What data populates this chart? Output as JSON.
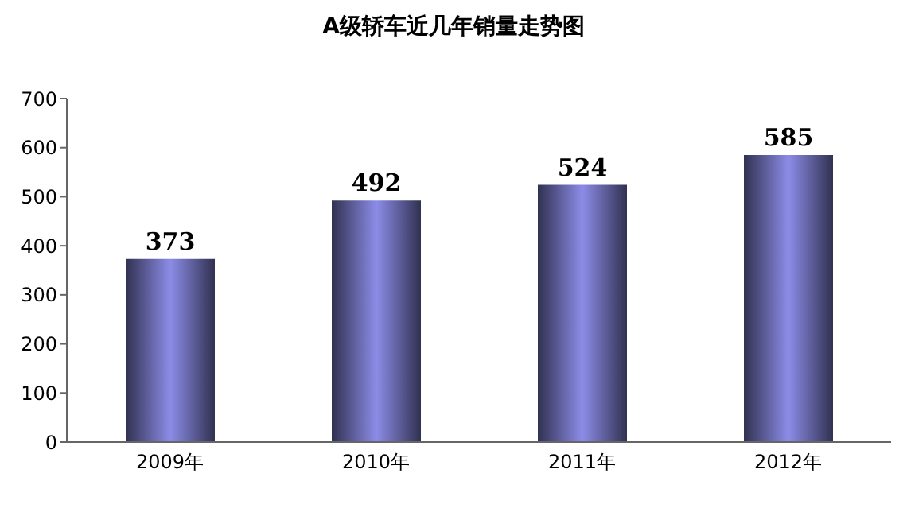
{
  "chart_data": {
    "type": "bar",
    "title": "A级轿车近几年销量走势图",
    "categories": [
      "2009年",
      "2010年",
      "2011年",
      "2012年"
    ],
    "values": [
      373,
      492,
      524,
      585
    ],
    "color": "#8c8ce8",
    "ylim": [
      0,
      700
    ],
    "yticks": [
      0,
      100,
      200,
      300,
      400,
      500,
      600,
      700
    ],
    "data_labels": true,
    "grid": false,
    "legend": false
  }
}
